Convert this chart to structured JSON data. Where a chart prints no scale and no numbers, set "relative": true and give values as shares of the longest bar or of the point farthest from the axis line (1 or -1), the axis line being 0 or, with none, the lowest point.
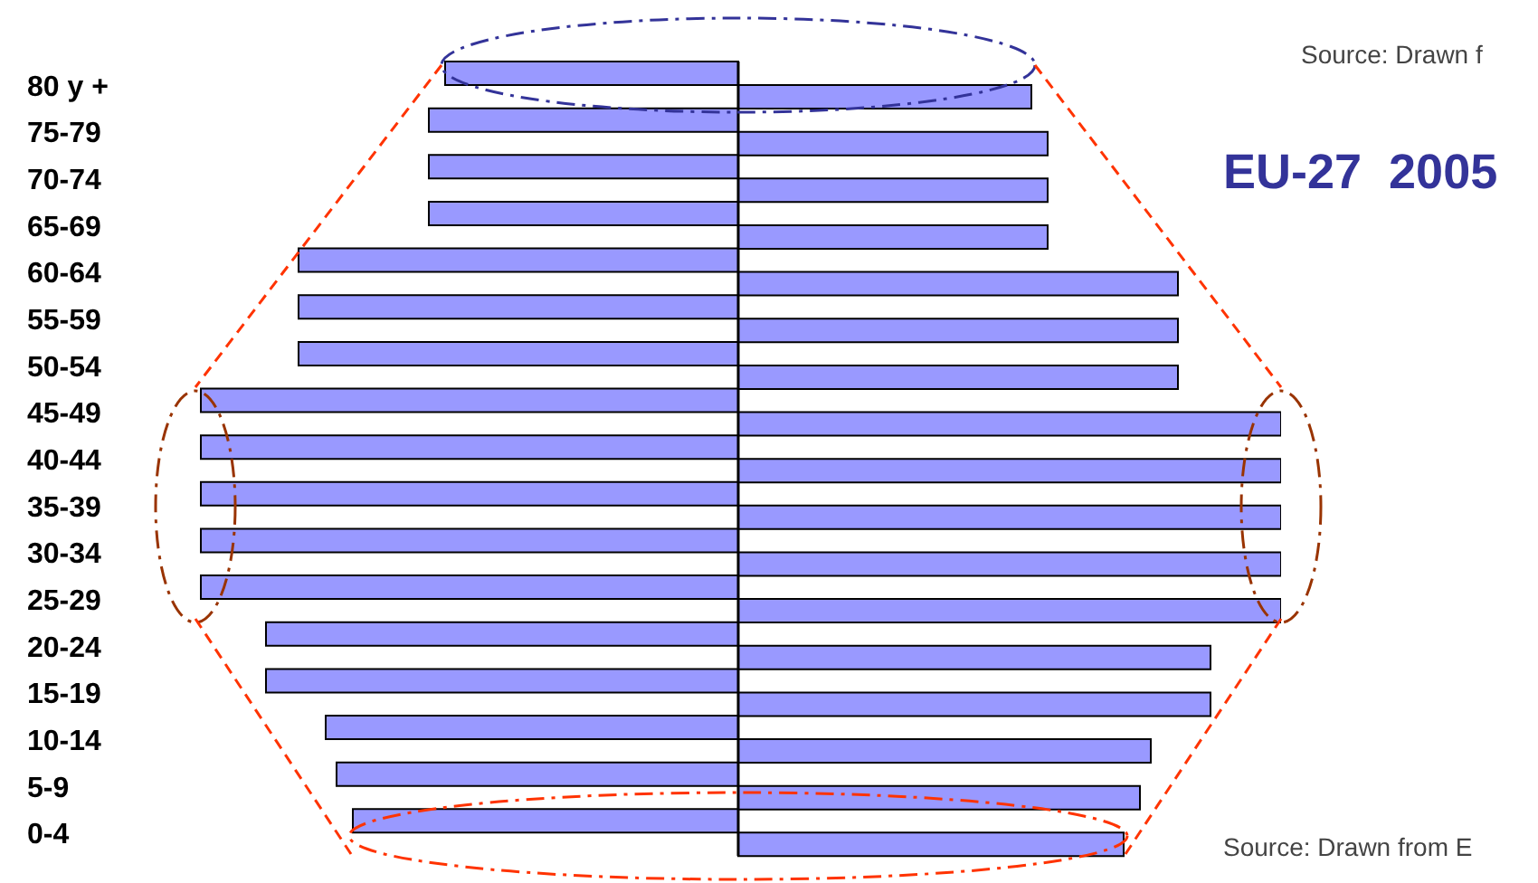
{
  "chart_data": {
    "type": "bar",
    "orientation": "horizontal",
    "relative": true,
    "title": "EU-27  2005",
    "annotations": [
      "Source: Drawn f",
      "Source: Drawn from E"
    ],
    "categories": [
      "80 y +",
      "75-79",
      "70-74",
      "65-69",
      "60-64",
      "55-59",
      "50-54",
      "45-49",
      "40-44",
      "35-39",
      "30-34",
      "25-29",
      "20-24",
      "15-19",
      "10-14",
      "5-9",
      "0-4"
    ],
    "series": [
      {
        "color": "#9999ff",
        "values": [
          -0.54,
          -0.57,
          -0.57,
          -0.57,
          -0.81,
          -0.81,
          -0.81,
          -0.99,
          -0.99,
          -0.99,
          -0.99,
          -0.99,
          -0.87,
          -0.87,
          -0.76,
          -0.74,
          -0.71
        ]
      },
      {
        "color": "#9999ff",
        "values": [
          0.54,
          0.57,
          0.57,
          0.57,
          0.81,
          0.81,
          0.81,
          1,
          1,
          1,
          1,
          1,
          0.87,
          0.87,
          0.76,
          0.74,
          0.71
        ]
      }
    ]
  }
}
